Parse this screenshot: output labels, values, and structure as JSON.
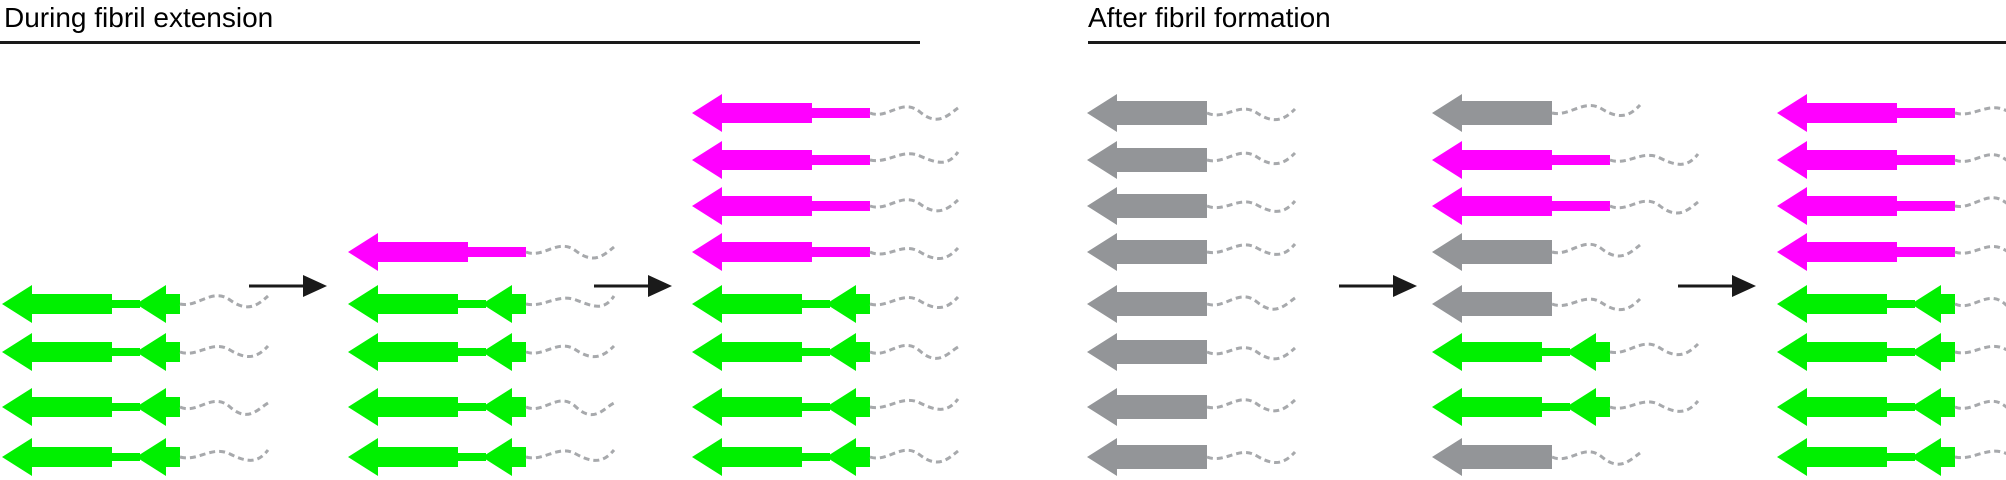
{
  "panels": {
    "left": {
      "title": "During fibril extension",
      "stages": [
        [
          "green",
          "green",
          "green",
          "green"
        ],
        [
          "magenta",
          "green",
          "green",
          "green",
          "green"
        ],
        [
          "magenta",
          "magenta",
          "magenta",
          "magenta",
          "green",
          "green",
          "green",
          "green"
        ]
      ]
    },
    "right": {
      "title": "After fibril formation",
      "stages": [
        [
          "gray",
          "gray",
          "gray",
          "gray",
          "gray",
          "gray",
          "gray",
          "gray"
        ],
        [
          "gray",
          "magenta",
          "magenta",
          "gray",
          "gray",
          "green",
          "green",
          "gray"
        ],
        [
          "magenta",
          "magenta",
          "magenta",
          "magenta",
          "green",
          "green",
          "green",
          "green"
        ]
      ]
    }
  },
  "colors": {
    "green": "#00f000",
    "magenta": "#ff00ff",
    "gray": "#939598",
    "tail": "#a7a9ac",
    "rule": "#1a1a1a",
    "arrow": "#1a1a1a"
  }
}
